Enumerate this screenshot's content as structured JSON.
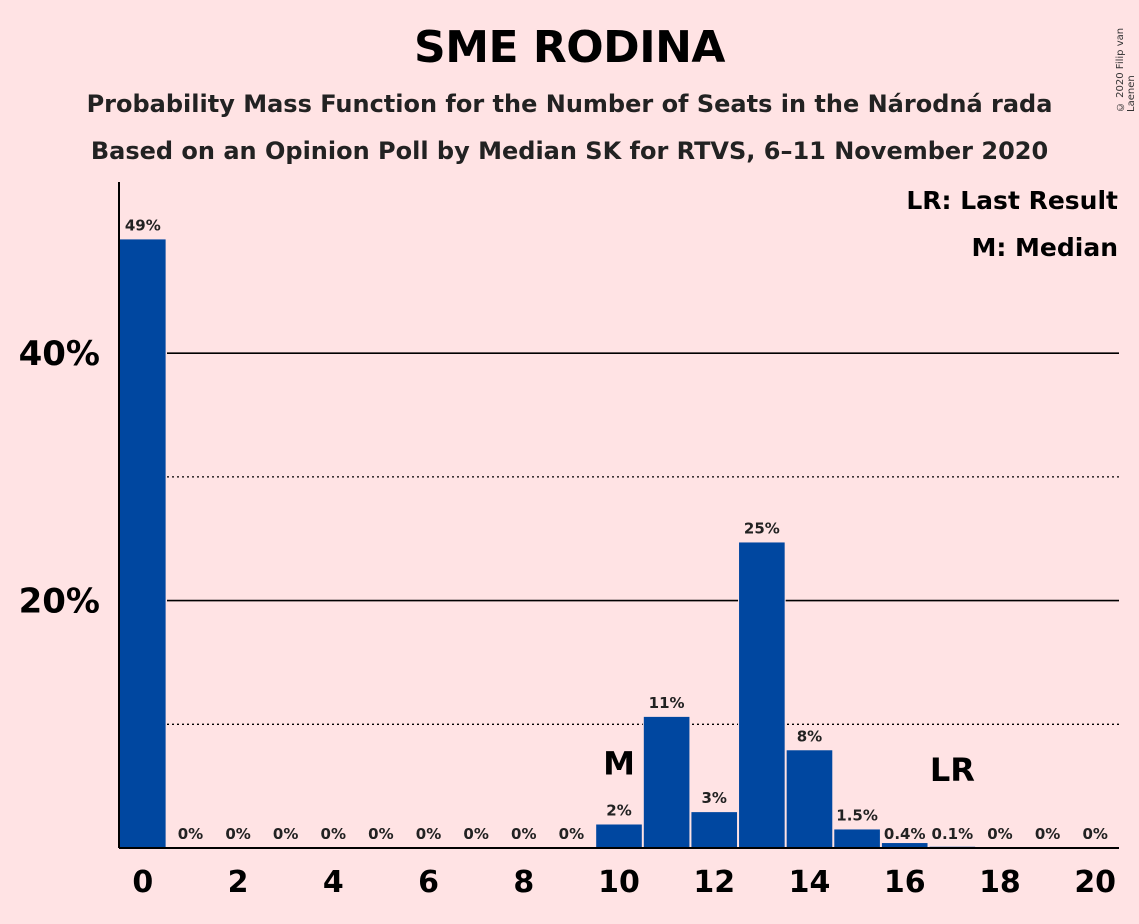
{
  "header": {
    "title": "SME RODINA",
    "subtitle1": "Probability Mass Function for the Number of Seats in the Národná rada",
    "subtitle2": "Based on an Opinion Poll by Median SK for RTVS, 6–11 November 2020",
    "copyright": "© 2020 Filip van Laenen"
  },
  "legend": {
    "last_result": "LR: Last Result",
    "median": "M: Median"
  },
  "colors": {
    "background": "#ffe3e4",
    "bar": "#0047a0",
    "text": "#000000"
  },
  "chart_data": {
    "type": "bar",
    "categories": [
      0,
      1,
      2,
      3,
      4,
      5,
      6,
      7,
      8,
      9,
      10,
      11,
      12,
      13,
      14,
      15,
      16,
      17,
      18,
      19,
      20
    ],
    "values": [
      49.2,
      0,
      0,
      0,
      0,
      0,
      0,
      0,
      0,
      0,
      1.9,
      10.6,
      2.9,
      24.7,
      7.9,
      1.5,
      0.4,
      0.1,
      0,
      0,
      0
    ],
    "data_labels": [
      "49%",
      "0%",
      "0%",
      "0%",
      "0%",
      "0%",
      "0%",
      "0%",
      "0%",
      "0%",
      "2%",
      "11%",
      "3%",
      "25%",
      "8%",
      "1.5%",
      "0.4%",
      "0.1%",
      "0%",
      "0%",
      "0%"
    ],
    "x_tick_labels": [
      "0",
      "2",
      "4",
      "6",
      "8",
      "10",
      "12",
      "14",
      "16",
      "18",
      "20"
    ],
    "y_tick_labels": [
      "20%",
      "40%"
    ],
    "ylim": [
      0,
      53.5
    ],
    "gridlines_solid": [
      20,
      40
    ],
    "gridlines_dotted": [
      10,
      30
    ],
    "median": {
      "seat": 10,
      "label": "M"
    },
    "last_result": {
      "seat": 17,
      "label": "LR"
    }
  }
}
